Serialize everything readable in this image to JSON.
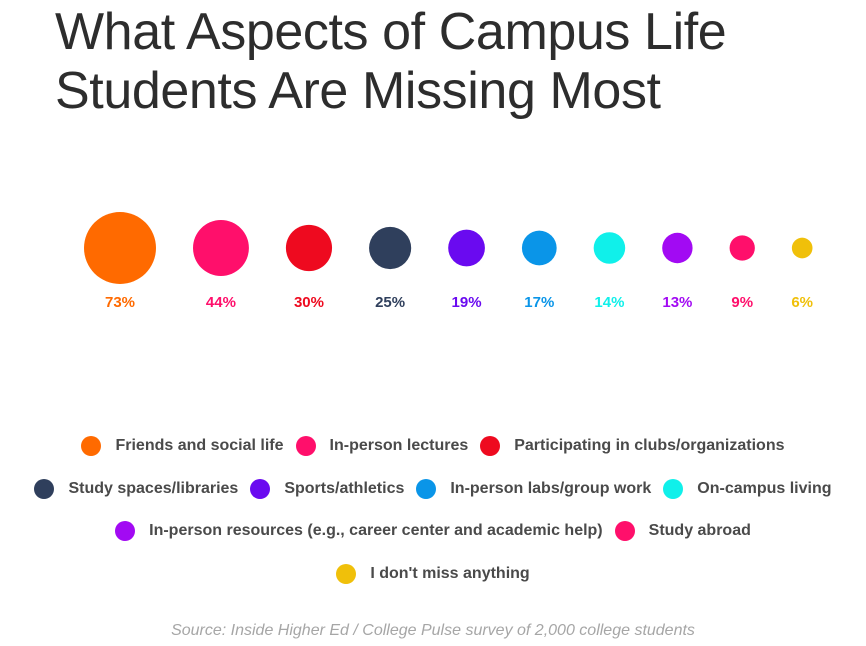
{
  "chart_data": {
    "type": "bubble",
    "title": [
      "What Aspects of Campus Life",
      "Students Are Missing Most"
    ],
    "categories": [
      "Friends and social life",
      "In-person lectures",
      "Participating in clubs/organizations",
      "Study spaces/libraries",
      "Sports/athletics",
      "In-person labs/group work",
      "On-campus living",
      "In-person resources (e.g., career center and academic help)",
      "Study abroad",
      "I don't miss anything"
    ],
    "values": [
      73,
      44,
      30,
      25,
      19,
      17,
      14,
      13,
      9,
      6
    ],
    "value_labels": [
      "73%",
      "44%",
      "30%",
      "25%",
      "19%",
      "17%",
      "14%",
      "13%",
      "9%",
      "6%"
    ],
    "colors": [
      "#ff6a00",
      "#ff0f6b",
      "#ee0a1f",
      "#2f3f5c",
      "#6a0af0",
      "#0a95e8",
      "#10f0ea",
      "#a20af3",
      "#ff0f6b",
      "#f0c00a"
    ],
    "legend_rows": [
      [
        0,
        1,
        2
      ],
      [
        3,
        4,
        5,
        6
      ],
      [
        7,
        8
      ],
      [
        9
      ]
    ],
    "source": "Source: Inside Higher Ed / College Pulse survey of 2,000 college students"
  }
}
